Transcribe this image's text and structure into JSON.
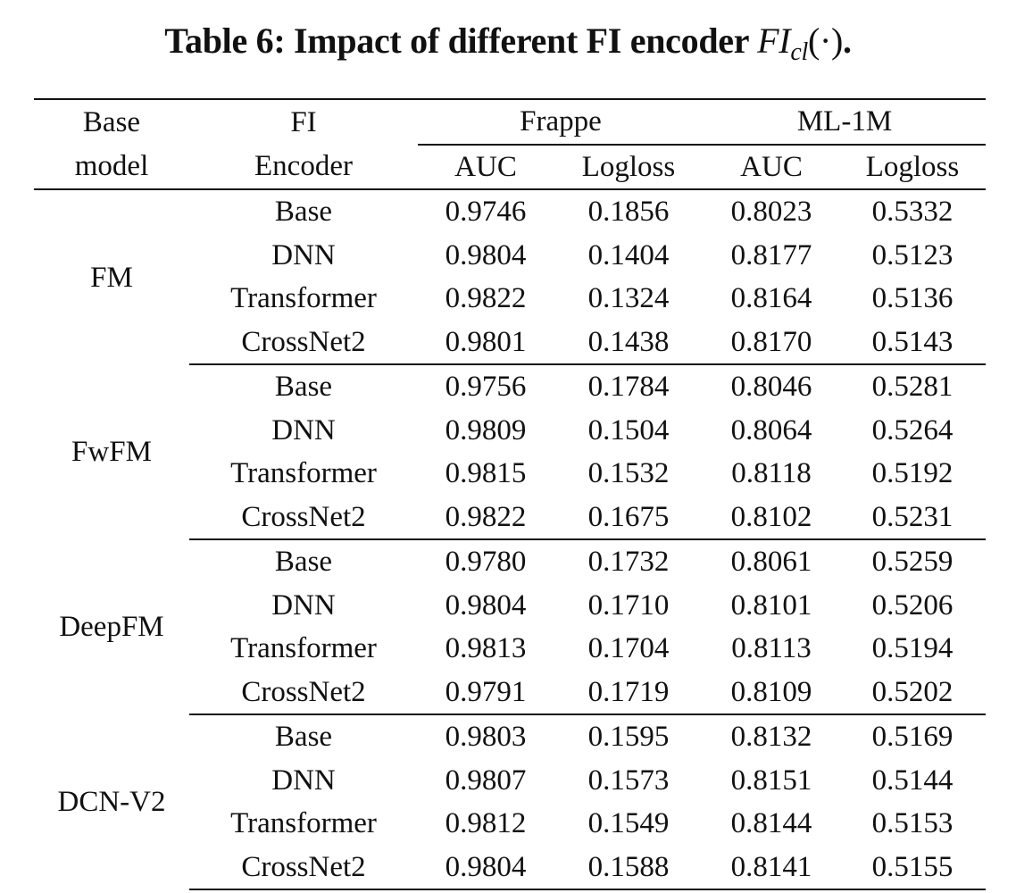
{
  "caption": {
    "prefix": "Table 6: Impact of different FI encoder ",
    "math_main": "FI",
    "math_sub": "cl",
    "math_tail": "(·)",
    "suffix": "."
  },
  "header": {
    "base_model": [
      "Base",
      "model"
    ],
    "fi_encoder": [
      "FI",
      "Encoder"
    ],
    "datasets": [
      "Frappe",
      "ML-1M"
    ],
    "metrics": [
      "AUC",
      "Logloss",
      "AUC",
      "Logloss"
    ]
  },
  "groups": [
    {
      "model": "FM",
      "rows": [
        {
          "encoder": "Base",
          "values": [
            "0.9746",
            "0.1856",
            "0.8023",
            "0.5332"
          ],
          "bold": [
            false,
            false,
            false,
            false
          ]
        },
        {
          "encoder": "DNN",
          "values": [
            "0.9804",
            "0.1404",
            "0.8177",
            "0.5123"
          ],
          "bold": [
            false,
            false,
            true,
            true
          ]
        },
        {
          "encoder": "Transformer",
          "values": [
            "0.9822",
            "0.1324",
            "0.8164",
            "0.5136"
          ],
          "bold": [
            true,
            true,
            false,
            false
          ]
        },
        {
          "encoder": "CrossNet2",
          "values": [
            "0.9801",
            "0.1438",
            "0.8170",
            "0.5143"
          ],
          "bold": [
            false,
            false,
            false,
            false
          ]
        }
      ]
    },
    {
      "model": "FwFM",
      "rows": [
        {
          "encoder": "Base",
          "values": [
            "0.9756",
            "0.1784",
            "0.8046",
            "0.5281"
          ],
          "bold": [
            false,
            false,
            false,
            false
          ]
        },
        {
          "encoder": "DNN",
          "values": [
            "0.9809",
            "0.1504",
            "0.8064",
            "0.5264"
          ],
          "bold": [
            false,
            true,
            false,
            false
          ]
        },
        {
          "encoder": "Transformer",
          "values": [
            "0.9815",
            "0.1532",
            "0.8118",
            "0.5192"
          ],
          "bold": [
            false,
            false,
            true,
            true
          ]
        },
        {
          "encoder": "CrossNet2",
          "values": [
            "0.9822",
            "0.1675",
            "0.8102",
            "0.5231"
          ],
          "bold": [
            true,
            false,
            false,
            false
          ]
        }
      ]
    },
    {
      "model": "DeepFM",
      "rows": [
        {
          "encoder": "Base",
          "values": [
            "0.9780",
            "0.1732",
            "0.8061",
            "0.5259"
          ],
          "bold": [
            false,
            false,
            false,
            false
          ]
        },
        {
          "encoder": "DNN",
          "values": [
            "0.9804",
            "0.1710",
            "0.8101",
            "0.5206"
          ],
          "bold": [
            false,
            false,
            false,
            false
          ]
        },
        {
          "encoder": "Transformer",
          "values": [
            "0.9813",
            "0.1704",
            "0.8113",
            "0.5194"
          ],
          "bold": [
            true,
            true,
            true,
            true
          ]
        },
        {
          "encoder": "CrossNet2",
          "values": [
            "0.9791",
            "0.1719",
            "0.8109",
            "0.5202"
          ],
          "bold": [
            false,
            false,
            false,
            false
          ]
        }
      ]
    },
    {
      "model": "DCN-V2",
      "rows": [
        {
          "encoder": "Base",
          "values": [
            "0.9803",
            "0.1595",
            "0.8132",
            "0.5169"
          ],
          "bold": [
            false,
            false,
            false,
            false
          ]
        },
        {
          "encoder": "DNN",
          "values": [
            "0.9807",
            "0.1573",
            "0.8151",
            "0.5144"
          ],
          "bold": [
            false,
            false,
            true,
            true
          ]
        },
        {
          "encoder": "Transformer",
          "values": [
            "0.9812",
            "0.1549",
            "0.8144",
            "0.5153"
          ],
          "bold": [
            true,
            true,
            false,
            false
          ]
        },
        {
          "encoder": "CrossNet2",
          "values": [
            "0.9804",
            "0.1588",
            "0.8141",
            "0.5155"
          ],
          "bold": [
            false,
            false,
            false,
            false
          ]
        }
      ]
    }
  ]
}
